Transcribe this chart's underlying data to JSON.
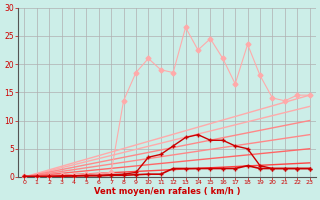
{
  "bg_color": "#cceee8",
  "grid_color": "#b0b0b0",
  "xlabel": "Vent moyen/en rafales ( km/h )",
  "xlabel_color": "#cc0000",
  "tick_color": "#cc0000",
  "xlim": [
    -0.5,
    23.5
  ],
  "ylim": [
    0,
    30
  ],
  "xticks": [
    0,
    1,
    2,
    3,
    4,
    5,
    6,
    7,
    8,
    9,
    10,
    11,
    12,
    13,
    14,
    15,
    16,
    17,
    18,
    19,
    20,
    21,
    22,
    23
  ],
  "yticks": [
    0,
    5,
    10,
    15,
    20,
    25,
    30
  ],
  "linear_lines": [
    {
      "x": [
        0,
        23
      ],
      "y": [
        0,
        14.5
      ],
      "color": "#ffaaaa",
      "lw": 1.0
    },
    {
      "x": [
        0,
        23
      ],
      "y": [
        0,
        12.5
      ],
      "color": "#ffaaaa",
      "lw": 1.0
    },
    {
      "x": [
        0,
        23
      ],
      "y": [
        0,
        10.0
      ],
      "color": "#ff8888",
      "lw": 1.0
    },
    {
      "x": [
        0,
        23
      ],
      "y": [
        0,
        7.5
      ],
      "color": "#ff8888",
      "lw": 1.0
    },
    {
      "x": [
        0,
        23
      ],
      "y": [
        0,
        5.0
      ],
      "color": "#ff6666",
      "lw": 1.0
    },
    {
      "x": [
        0,
        23
      ],
      "y": [
        0,
        2.5
      ],
      "color": "#ff4444",
      "lw": 1.0
    }
  ],
  "jagged_x": [
    0,
    1,
    2,
    3,
    4,
    5,
    6,
    7,
    8,
    9,
    10,
    11,
    12,
    13,
    14,
    15,
    16,
    17,
    18,
    19,
    20,
    21,
    22,
    23
  ],
  "jagged_y": [
    0.2,
    0.2,
    0.2,
    0.3,
    0.4,
    0.5,
    0.6,
    0.8,
    13.5,
    18.5,
    21.0,
    19.0,
    18.5,
    26.5,
    22.5,
    24.5,
    21.0,
    16.5,
    23.5,
    18.0,
    14.0,
    13.5,
    14.5,
    14.5
  ],
  "jagged_color": "#ffaaaa",
  "jagged_marker": "D",
  "jagged_ms": 2.5,
  "medium_x": [
    0,
    1,
    2,
    3,
    4,
    5,
    6,
    7,
    8,
    9,
    10,
    11,
    12,
    13,
    14,
    15,
    16,
    17,
    18,
    19,
    20,
    21,
    22,
    23
  ],
  "medium_y": [
    0.1,
    0.1,
    0.1,
    0.2,
    0.2,
    0.3,
    0.3,
    0.4,
    0.5,
    0.8,
    3.5,
    4.0,
    5.5,
    7.0,
    7.5,
    6.5,
    6.5,
    5.5,
    5.0,
    2.0,
    1.5,
    1.5,
    1.5,
    1.5
  ],
  "medium_color": "#cc0000",
  "medium_marker": "+",
  "medium_ms": 3.5,
  "flat_x": [
    0,
    1,
    2,
    3,
    4,
    5,
    6,
    7,
    8,
    9,
    10,
    11,
    12,
    13,
    14,
    15,
    16,
    17,
    18,
    19,
    20,
    21,
    22,
    23
  ],
  "flat_y": [
    0.1,
    0.1,
    0.1,
    0.1,
    0.2,
    0.2,
    0.2,
    0.3,
    0.3,
    0.4,
    0.5,
    0.5,
    1.5,
    1.5,
    1.5,
    1.5,
    1.5,
    1.5,
    2.0,
    1.5,
    1.5,
    1.5,
    1.5,
    1.5
  ],
  "flat_color": "#cc0000",
  "flat_marker": "+",
  "flat_ms": 3.5,
  "flat_lw": 1.2
}
